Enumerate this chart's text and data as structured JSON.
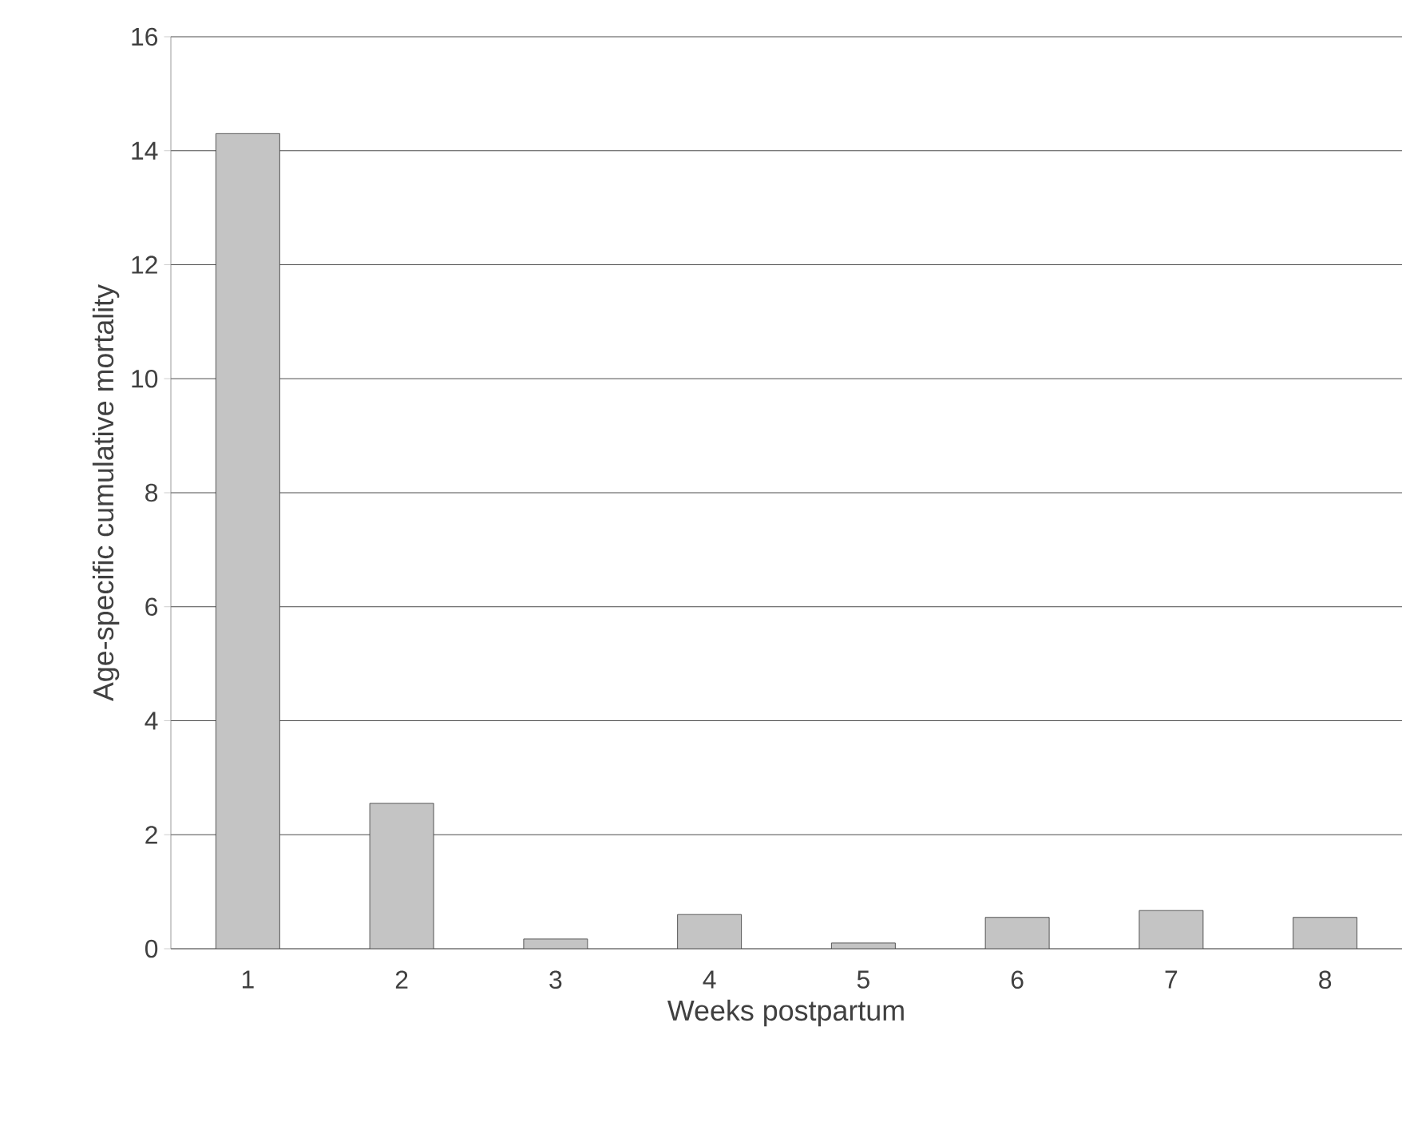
{
  "chart_data": {
    "type": "bar",
    "xlabel": "Weeks postpartum",
    "ylabel": "Age-specific cumulative mortality",
    "categories": [
      "1",
      "2",
      "3",
      "4",
      "5",
      "6",
      "7",
      "8"
    ],
    "values": [
      14.3,
      2.55,
      0.17,
      0.6,
      0.1,
      0.55,
      0.67,
      0.55
    ],
    "color": "#c4c4c4",
    "ylim": [
      0,
      16
    ],
    "yticks": [
      0,
      2,
      4,
      6,
      8,
      10,
      12,
      14,
      16
    ],
    "grid": "y"
  }
}
